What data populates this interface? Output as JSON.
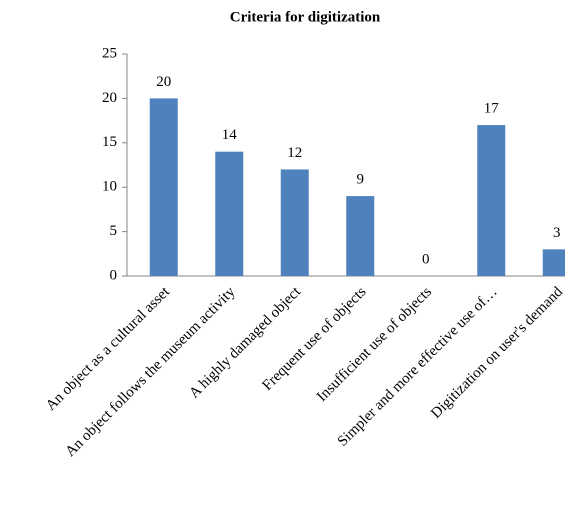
{
  "chart_data": {
    "type": "bar",
    "title": "Criteria for digitization",
    "categories": [
      "An object as a cultural asset",
      "An object follows the museum activity",
      "A highly damaged object",
      "Frequent use of objects",
      "Insufficient use of objects",
      "Simpler and more effective use of…",
      "Digitization on user's demand"
    ],
    "values": [
      20,
      14,
      12,
      9,
      0,
      17,
      3
    ],
    "color": "#4f81bd",
    "ylim": [
      0,
      25
    ],
    "yticks": [
      0,
      5,
      10,
      15,
      20,
      25
    ],
    "grid": false
  }
}
